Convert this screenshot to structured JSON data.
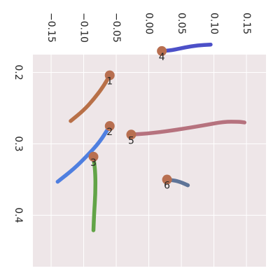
{
  "chart_data": {
    "type": "line",
    "title": "",
    "xlabel": "",
    "ylabel": "",
    "orientation": "axes rotated 90° clockwise; x ticks on top, y ticks on left",
    "grid": true,
    "background": "#EEE6E8",
    "grid_color": "#FFFFFF",
    "marker_color": "#B86F50",
    "x_ticks": [
      -0.15,
      -0.1,
      -0.05,
      0.0,
      0.05,
      0.1,
      0.15
    ],
    "x_tick_labels": [
      "−0.15",
      "−0.10",
      "−0.05",
      "0.00",
      "0.05",
      "0.10",
      "0.15"
    ],
    "y_ticks": [
      0.2,
      0.3,
      0.4
    ],
    "y_tick_labels": [
      "0.2",
      "0.3",
      "0.4"
    ],
    "xlim": [
      -0.178,
      0.18
    ],
    "ylim": [
      0.175,
      0.472
    ],
    "series": [
      {
        "label": "1",
        "color": "#B87048",
        "points": [
          [
            -0.06,
            0.204
          ],
          [
            -0.07,
            0.22
          ],
          [
            -0.085,
            0.238
          ],
          [
            -0.1,
            0.253
          ],
          [
            -0.12,
            0.268
          ]
        ]
      },
      {
        "label": "2",
        "color": "#4F7FE0",
        "points": [
          [
            -0.06,
            0.275
          ],
          [
            -0.075,
            0.297
          ],
          [
            -0.095,
            0.317
          ],
          [
            -0.115,
            0.335
          ],
          [
            -0.14,
            0.353
          ]
        ]
      },
      {
        "label": "3",
        "color": "#62A447",
        "points": [
          [
            -0.085,
            0.318
          ],
          [
            -0.082,
            0.34
          ],
          [
            -0.082,
            0.37
          ],
          [
            -0.084,
            0.398
          ],
          [
            -0.085,
            0.421
          ]
        ]
      },
      {
        "label": "4",
        "color": "#4C50C8",
        "points": [
          [
            0.02,
            0.17
          ],
          [
            0.035,
            0.169
          ],
          [
            0.055,
            0.165
          ],
          [
            0.075,
            0.162
          ],
          [
            0.095,
            0.161
          ]
        ]
      },
      {
        "label": "5",
        "color": "#B6727E",
        "points": [
          [
            -0.027,
            0.287
          ],
          [
            0.005,
            0.285
          ],
          [
            0.045,
            0.28
          ],
          [
            0.085,
            0.274
          ],
          [
            0.115,
            0.269
          ],
          [
            0.138,
            0.269
          ],
          [
            0.147,
            0.27
          ]
        ]
      },
      {
        "label": "6",
        "color": "#5F7498",
        "points": [
          [
            0.028,
            0.35
          ],
          [
            0.045,
            0.352
          ],
          [
            0.06,
            0.358
          ]
        ]
      }
    ]
  }
}
